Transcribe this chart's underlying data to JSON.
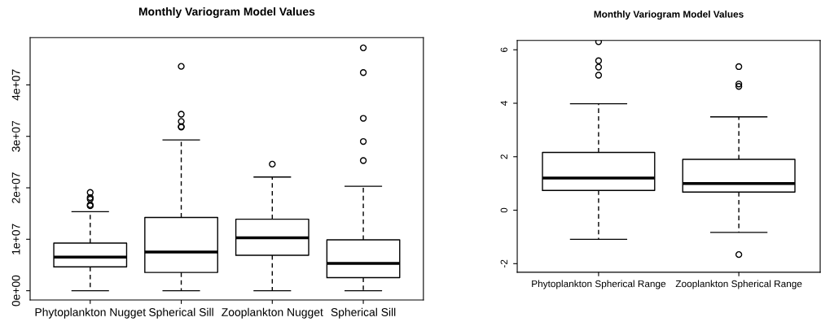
{
  "chart_data": [
    {
      "type": "box",
      "title": "Monthly Variogram Model Values",
      "categories": [
        "Phytoplankton Nugget",
        "Spherical Sill",
        "Zooplankton Nugget",
        "Spherical Sill"
      ],
      "boxes": [
        {
          "low": 0,
          "q1": 4630000,
          "median": 6550000,
          "q3": 9270000,
          "high": 15370000,
          "outliers": [
            16500000,
            16700000,
            17800000,
            18100000,
            19100000
          ]
        },
        {
          "low": 0,
          "q1": 3560000,
          "median": 7510000,
          "q3": 14240000,
          "high": 29300000,
          "outliers": [
            31800000,
            31900000,
            32900000,
            34300000,
            43600000
          ]
        },
        {
          "low": 0,
          "q1": 6890000,
          "median": 10300000,
          "q3": 13900000,
          "high": 22100000,
          "outliers": [
            24600000
          ]
        },
        {
          "low": 0,
          "q1": 2540000,
          "median": 5310000,
          "q3": 9890000,
          "high": 20300000,
          "outliers": [
            25300000,
            29000000,
            33500000,
            42400000,
            47200000
          ]
        }
      ],
      "ylim": [
        -1800000,
        49200000
      ],
      "yticks": [
        {
          "value": 0,
          "label": "0e+00"
        },
        {
          "value": 10000000,
          "label": "1e+07"
        },
        {
          "value": 20000000,
          "label": "2e+07"
        },
        {
          "value": 30000000,
          "label": "3e+07"
        },
        {
          "value": 40000000,
          "label": "4e+07"
        }
      ]
    },
    {
      "type": "box",
      "title": "Monthly Variogram Model Values",
      "categories": [
        "Phytoplankton Spherical Range",
        "Zooplankton Spherical Range"
      ],
      "boxes": [
        {
          "low": -1.09,
          "q1": 0.74,
          "median": 1.2,
          "q3": 2.16,
          "high": 3.98,
          "outliers": [
            5.05,
            5.35,
            5.59,
            6.3
          ]
        },
        {
          "low": -0.83,
          "q1": 0.68,
          "median": 1.0,
          "q3": 1.9,
          "high": 3.49,
          "outliers": [
            -1.66,
            4.63,
            4.72,
            5.37
          ]
        }
      ],
      "ylim": [
        -2.32,
        6.35
      ],
      "yticks": [
        {
          "value": -2,
          "label": "-2"
        },
        0,
        2,
        4,
        6
      ]
    }
  ]
}
